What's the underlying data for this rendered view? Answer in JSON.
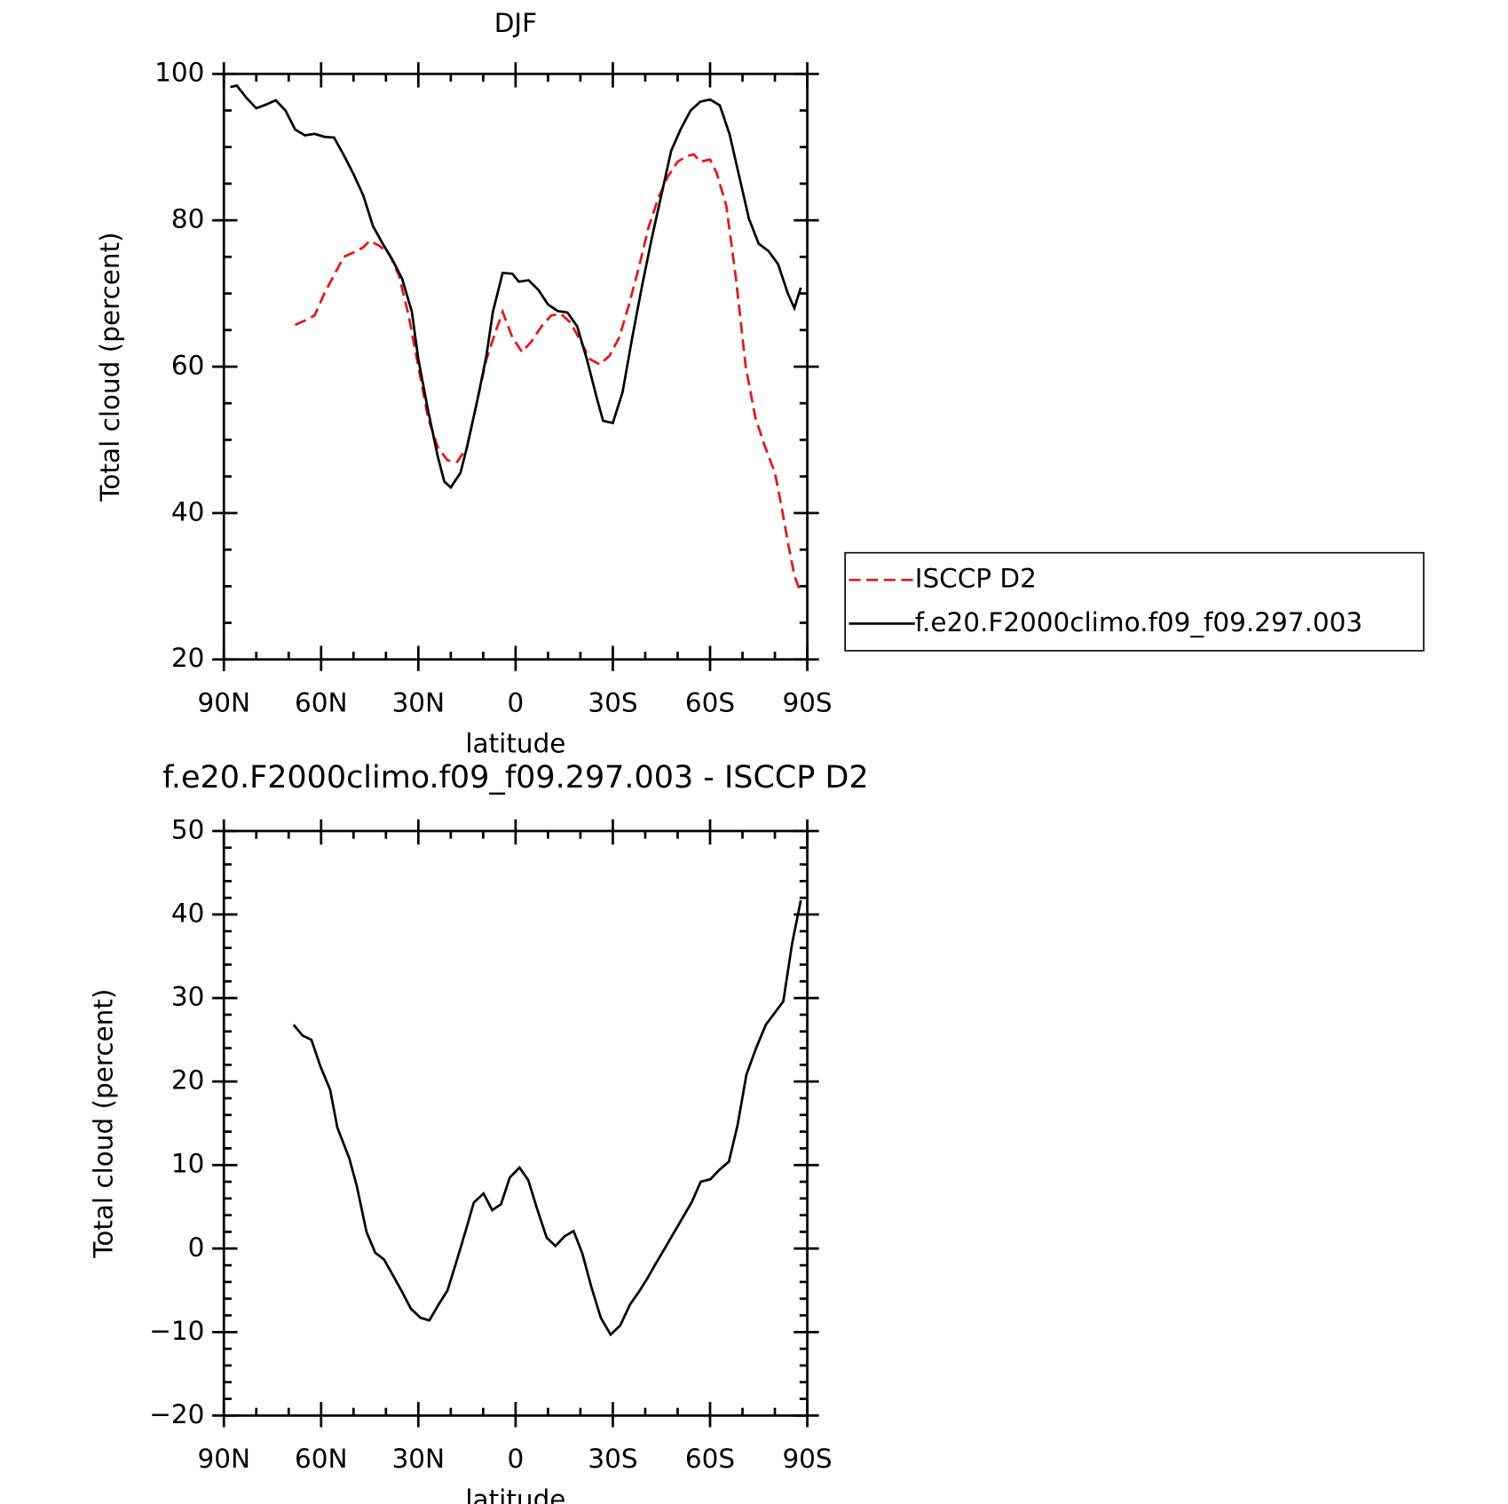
{
  "chart_data": [
    {
      "type": "line",
      "title": "DJF",
      "xlabel": "latitude",
      "ylabel": "Total cloud (percent)",
      "xlim": [
        90,
        -90
      ],
      "xticks": [
        {
          "value": 90,
          "label": "90N"
        },
        {
          "value": 60,
          "label": "60N"
        },
        {
          "value": 30,
          "label": "30N"
        },
        0,
        {
          "value": -30,
          "label": "30S"
        },
        {
          "value": -60,
          "label": "60S"
        },
        {
          "value": -90,
          "label": "90S"
        }
      ],
      "ylim": [
        20,
        100
      ],
      "yticks": [
        20,
        40,
        60,
        80,
        100
      ],
      "legend": "right",
      "series": [
        {
          "name": "ISCCP D2",
          "color": "#e8141b",
          "dashed": true,
          "x": [
            68,
            65,
            62,
            59,
            56,
            53,
            50,
            47,
            45,
            42,
            39,
            36,
            33,
            30,
            27,
            24,
            21,
            18,
            15,
            12,
            9,
            6,
            4,
            1,
            -2,
            -5,
            -8,
            -11,
            -14,
            -17,
            -20,
            -23,
            -26,
            -29,
            -32,
            -35,
            -38,
            -41,
            -44,
            -47,
            -50,
            -53,
            -55,
            -57,
            -60,
            -62,
            -65,
            -68,
            -71,
            -74,
            -77,
            -80,
            -82,
            -84,
            -86,
            -88
          ],
          "values": [
            65.7,
            66.3,
            67.0,
            70.0,
            72.5,
            75.0,
            75.6,
            76.3,
            77.2,
            76.5,
            75.4,
            72.5,
            67.0,
            60.0,
            53.0,
            49.0,
            47.2,
            47.0,
            49.0,
            55.0,
            61.0,
            65.0,
            67.5,
            64.0,
            62.0,
            63.5,
            65.5,
            67.0,
            67.2,
            66.0,
            63.5,
            61.0,
            60.3,
            61.5,
            64.0,
            68.5,
            73.5,
            79.0,
            83.0,
            86.0,
            88.0,
            88.8,
            89.0,
            88.0,
            88.3,
            86.5,
            82.0,
            72.0,
            60.0,
            53.0,
            49.0,
            45.5,
            41.0,
            36.0,
            31.5,
            29.0
          ]
        },
        {
          "name": "f.e20.F2000climo.f09_f09.297.003",
          "color": "#000000",
          "dashed": false,
          "x": [
            88,
            86,
            83,
            80,
            77,
            74,
            71,
            68,
            65,
            62,
            59,
            56,
            53,
            50,
            47,
            44,
            41,
            38,
            35,
            32,
            30,
            27,
            24,
            22,
            20,
            17,
            15,
            12,
            9,
            7,
            4,
            1,
            -1,
            -4,
            -7,
            -10,
            -13,
            -16,
            -19,
            -22,
            -25,
            -27,
            -30,
            -33,
            -36,
            -39,
            -42,
            -45,
            -48,
            -51,
            -54,
            -57,
            -60,
            -63,
            -66,
            -69,
            -72,
            -75,
            -78,
            -81,
            -84,
            -86,
            -88
          ],
          "values": [
            98.2,
            98.4,
            96.7,
            95.3,
            95.8,
            96.4,
            95.0,
            92.4,
            91.6,
            91.8,
            91.4,
            91.3,
            88.9,
            86.3,
            83.4,
            79.2,
            76.8,
            74.6,
            72.0,
            67.5,
            61.0,
            54.0,
            47.7,
            44.3,
            43.5,
            45.5,
            49.0,
            55.0,
            61.5,
            67.5,
            72.8,
            72.7,
            71.6,
            71.8,
            70.5,
            68.5,
            67.6,
            67.4,
            65.5,
            61.0,
            55.8,
            52.6,
            52.3,
            56.5,
            64.0,
            71.0,
            77.5,
            83.5,
            89.5,
            92.5,
            95.0,
            96.2,
            96.5,
            95.7,
            91.8,
            86.0,
            80.2,
            76.8,
            75.8,
            74.0,
            70.0,
            68.0,
            70.8
          ]
        }
      ]
    },
    {
      "type": "line",
      "title": "f.e20.F2000climo.f09_f09.297.003 - ISCCP D2",
      "xlabel": "latitude",
      "ylabel": "Total cloud (percent)",
      "xlim": [
        90,
        -90
      ],
      "xticks": [
        {
          "value": 90,
          "label": "90N"
        },
        {
          "value": 60,
          "label": "60N"
        },
        {
          "value": 30,
          "label": "30N"
        },
        0,
        {
          "value": -30,
          "label": "30S"
        },
        {
          "value": -60,
          "label": "60S"
        },
        {
          "value": -90,
          "label": "90S"
        }
      ],
      "ylim": [
        -20,
        50
      ],
      "yticks": [
        {
          "value": -20,
          "label": "−20"
        },
        {
          "value": -10,
          "label": "−10"
        },
        0,
        10,
        20,
        30,
        40,
        50
      ],
      "series": [
        {
          "color": "#000000",
          "dashed": false,
          "x": [
            68.5,
            65.7,
            63,
            60.2,
            57.2,
            55,
            51.3,
            49,
            46,
            43.3,
            40.6,
            37.7,
            35,
            32.3,
            29.3,
            26.6,
            23.9,
            21,
            18.2,
            15.5,
            12.9,
            9.9,
            7.2,
            4.5,
            1.8,
            -1.2,
            -3.9,
            -6.6,
            -9.6,
            -12.3,
            -15.2,
            -17.9,
            -20.6,
            -23.3,
            -26.3,
            -29.3,
            -32.3,
            -35.3,
            -38,
            -40.6,
            -43.4,
            -46.3,
            -49,
            -51.7,
            -54.4,
            -57.1,
            -60.1,
            -62.8,
            -65.8,
            -68.5,
            -71.2,
            -74.2,
            -77.2,
            -82.6,
            -85.3,
            -88
          ],
          "values": [
            26.8,
            25.5,
            25,
            21.8,
            19,
            14.5,
            10.8,
            7.5,
            2,
            -0.5,
            -1.3,
            -3.3,
            -5.2,
            -7.2,
            -8.3,
            -8.6,
            -6.8,
            -5,
            -1.5,
            2,
            5.5,
            6.6,
            4.6,
            5.3,
            8.5,
            9.7,
            8.2,
            4.8,
            1.3,
            0.3,
            1.5,
            2.1,
            -0.6,
            -4.5,
            -8.3,
            -10.3,
            -9.2,
            -6.7,
            -5.2,
            -3.6,
            -1.7,
            0.2,
            2,
            3.8,
            5.6,
            8,
            8.3,
            9.4,
            10.4,
            14.8,
            20.8,
            24,
            26.8,
            29.6,
            36.5,
            41.7
          ]
        }
      ]
    }
  ]
}
